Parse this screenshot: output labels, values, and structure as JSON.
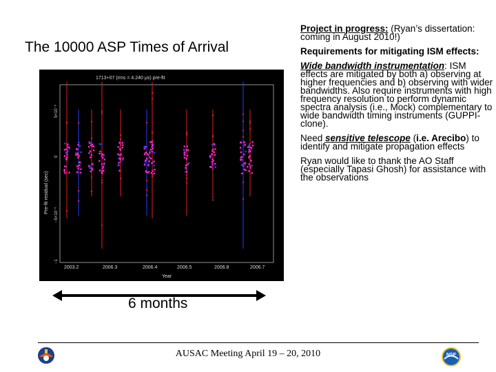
{
  "slide": {
    "title": "The 10000 ASP Times of Arrival",
    "caption": "6 months",
    "footer": "AUSAC Meeting April 19 – 20, 2010"
  },
  "plot": {
    "header": "1713+07 (rms = 4.240 μs) pre-fit",
    "ylabel": "Pre-fit residual (sec)",
    "xlabel": "Year",
    "yticks": [
      "5×10⁻⁶",
      "0",
      "−5×10⁻⁶",
      "−1"
    ],
    "xticks": [
      "2003.2",
      "2006.3",
      "2006.4",
      "2006.5",
      "2006.8",
      "2006.7"
    ]
  },
  "right": {
    "p1_label": "Project in progress:",
    "p1_text": " (Ryan’s dissertation: coming in August 2010!)",
    "p2_label": "Requirements for mitigating ISM effects:",
    "p3_label": "Wide bandwidth instrumentation",
    "p3_colon": ":",
    "p3_text": " ISM effects are mitigated  by both a) observing at higher frequencies and b) observing with wider bandwidths.  Also require instruments with high frequency resolution to perform dynamic spectra analysis (i.e., Mock) complementary to wide bandwidth timing instruments (GUPPI-clone).",
    "p4_pre": "Need ",
    "p4_label": "sensitive telescope",
    "p4_mid": " (",
    "p4_ie": "i.e. Arecibo",
    "p4_text": ") to identify and mitigate propagation effects",
    "p5_text": "Ryan would like to thank the AO Staff (especially Tapasi Ghosh) for assistance with the observations"
  },
  "colors": {
    "magenta": "#ff22cc",
    "red": "#e0202a",
    "blue": "#2a3cff",
    "plot_bg": "#000000"
  },
  "logos": {
    "left": "arecibo-observatory-logo",
    "right": "nsf-logo"
  }
}
